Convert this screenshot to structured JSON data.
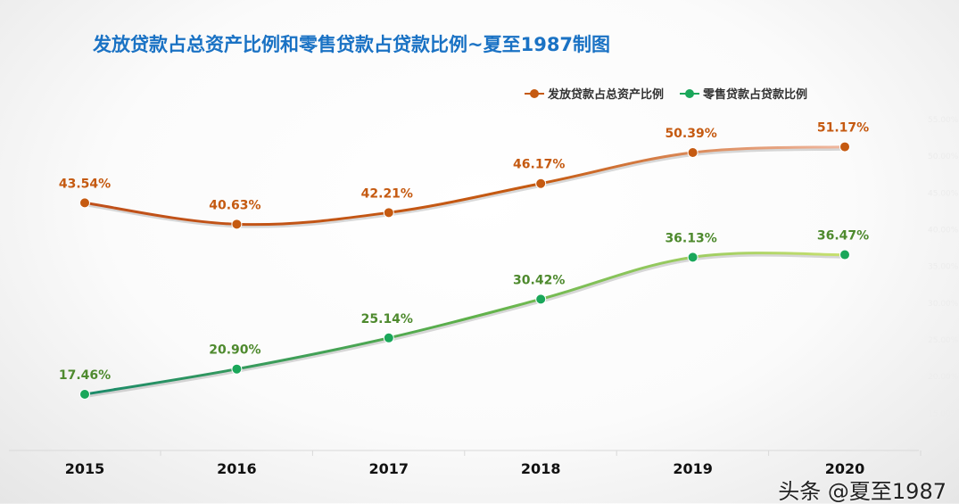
{
  "chart_data": {
    "type": "line",
    "title": "发放贷款占总资产比例和零售贷款占贷款比例~夏至1987制图",
    "categories": [
      "2015",
      "2016",
      "2017",
      "2018",
      "2019",
      "2020"
    ],
    "series": [
      {
        "name": "发放贷款占总资产比例",
        "values": [
          43.54,
          40.63,
          42.21,
          46.17,
          50.39,
          51.17
        ],
        "labels": [
          "43.54%",
          "40.63%",
          "42.21%",
          "46.17%",
          "50.39%",
          "51.17%"
        ],
        "color": "#c55a11"
      },
      {
        "name": "零售贷款占贷款比例",
        "values": [
          17.46,
          20.9,
          25.14,
          30.42,
          36.13,
          36.47
        ],
        "labels": [
          "17.46%",
          "20.90%",
          "25.14%",
          "30.42%",
          "36.13%",
          "36.47%"
        ],
        "color": "#1aa75a"
      }
    ],
    "y_axis_ticks": [
      "15.00%",
      "20.00%",
      "25.00%",
      "30.00%",
      "35.00%",
      "40.00%",
      "45.00%",
      "50.00%",
      "55.00%"
    ],
    "ylim": [
      15,
      55
    ],
    "grid": false,
    "legend": "top-right"
  },
  "watermark": "头条 @夏至1987"
}
